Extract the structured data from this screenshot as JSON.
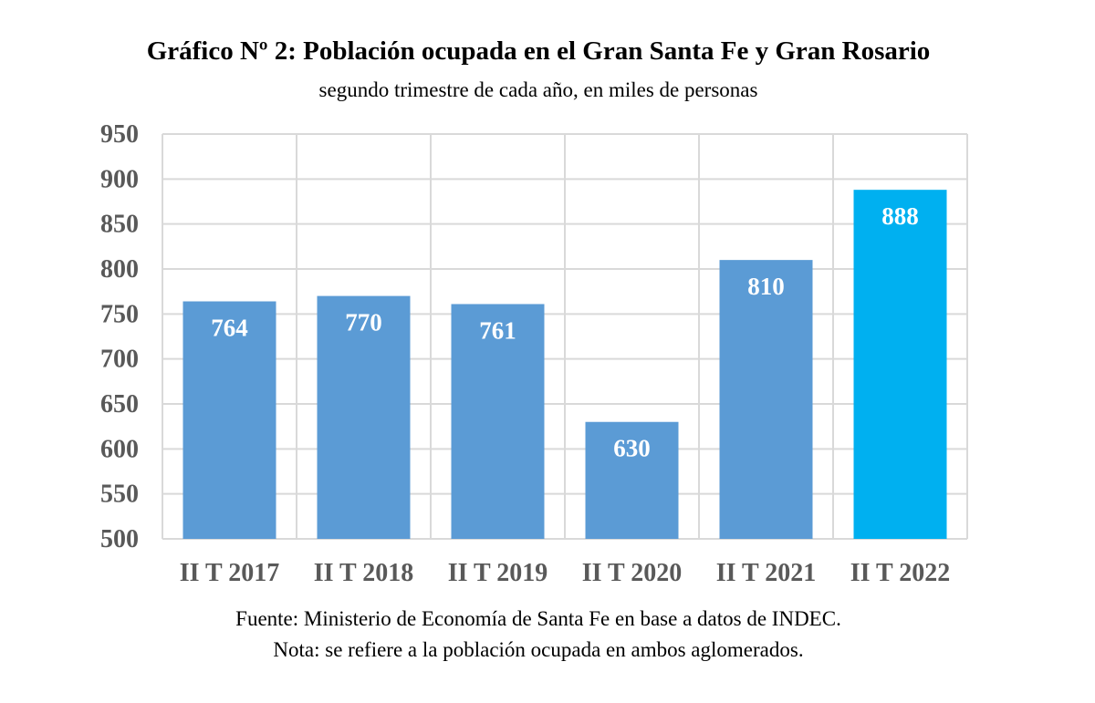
{
  "chart_data": {
    "type": "bar",
    "title": "Gráfico Nº 2: Población ocupada en el Gran Santa Fe y Gran Rosario",
    "subtitle": "segundo trimestre de cada año, en miles de personas",
    "categories": [
      "II T 2017",
      "II T 2018",
      "II T 2019",
      "II T 2020",
      "II T 2021",
      "II T 2022"
    ],
    "values": [
      764,
      770,
      761,
      630,
      810,
      888
    ],
    "data_labels": [
      "764",
      "770",
      "761",
      "630",
      "810",
      "888"
    ],
    "ylim": [
      500,
      950
    ],
    "yticks": [
      "500",
      "550",
      "600",
      "650",
      "700",
      "750",
      "800",
      "850",
      "900",
      "950"
    ],
    "grid": true,
    "colors": [
      "#5B9BD5",
      "#5B9BD5",
      "#5B9BD5",
      "#5B9BD5",
      "#5B9BD5",
      "#00B0F0"
    ],
    "xlabel": "",
    "ylabel": ""
  },
  "footer": {
    "source": "Fuente: Ministerio de Economía de Santa Fe en base a datos de INDEC.",
    "note": "Nota: se refiere a la población ocupada en ambos aglomerados."
  }
}
